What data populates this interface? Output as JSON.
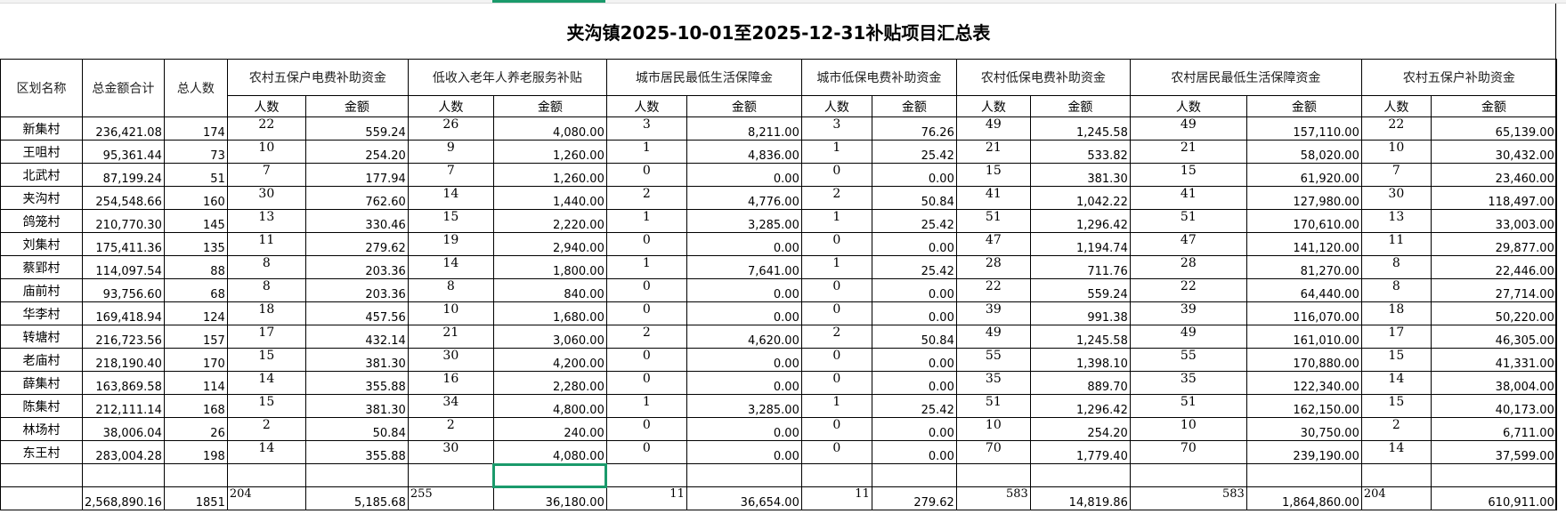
{
  "title": "夹沟镇2025-10-01至2025-12-31补贴项目汇总表",
  "headers": {
    "region": "区划名称",
    "total_amount": "总金额合计",
    "total_people": "总人数",
    "count": "人数",
    "amount": "金额",
    "groups": [
      "农村五保户电费补助资金",
      "低收入老年人养老服务补贴",
      "城市居民最低生活保障金",
      "城市低保电费补助资金",
      "农村低保电费补助资金",
      "农村居民最低生活保障资金",
      "农村五保户补助资金"
    ]
  },
  "rows": [
    [
      "新集村",
      "236,421.08",
      "174",
      "22",
      "559.24",
      "26",
      "4,080.00",
      "3",
      "8,211.00",
      "3",
      "76.26",
      "49",
      "1,245.58",
      "49",
      "157,110.00",
      "22",
      "65,139.00"
    ],
    [
      "王咀村",
      "95,361.44",
      "73",
      "10",
      "254.20",
      "9",
      "1,260.00",
      "1",
      "4,836.00",
      "1",
      "25.42",
      "21",
      "533.82",
      "21",
      "58,020.00",
      "10",
      "30,432.00"
    ],
    [
      "北武村",
      "87,199.24",
      "51",
      "7",
      "177.94",
      "7",
      "1,260.00",
      "0",
      "0.00",
      "0",
      "0.00",
      "15",
      "381.30",
      "15",
      "61,920.00",
      "7",
      "23,460.00"
    ],
    [
      "夹沟村",
      "254,548.66",
      "160",
      "30",
      "762.60",
      "14",
      "1,440.00",
      "2",
      "4,776.00",
      "2",
      "50.84",
      "41",
      "1,042.22",
      "41",
      "127,980.00",
      "30",
      "118,497.00"
    ],
    [
      "鸽笼村",
      "210,770.30",
      "145",
      "13",
      "330.46",
      "15",
      "2,220.00",
      "1",
      "3,285.00",
      "1",
      "25.42",
      "51",
      "1,296.42",
      "51",
      "170,610.00",
      "13",
      "33,003.00"
    ],
    [
      "刘集村",
      "175,411.36",
      "135",
      "11",
      "279.62",
      "19",
      "2,940.00",
      "0",
      "0.00",
      "0",
      "0.00",
      "47",
      "1,194.74",
      "47",
      "141,120.00",
      "11",
      "29,877.00"
    ],
    [
      "蔡郢村",
      "114,097.54",
      "88",
      "8",
      "203.36",
      "14",
      "1,800.00",
      "1",
      "7,641.00",
      "1",
      "25.42",
      "28",
      "711.76",
      "28",
      "81,270.00",
      "8",
      "22,446.00"
    ],
    [
      "庙前村",
      "93,756.60",
      "68",
      "8",
      "203.36",
      "8",
      "840.00",
      "0",
      "0.00",
      "0",
      "0.00",
      "22",
      "559.24",
      "22",
      "64,440.00",
      "8",
      "27,714.00"
    ],
    [
      "华李村",
      "169,418.94",
      "124",
      "18",
      "457.56",
      "10",
      "1,680.00",
      "0",
      "0.00",
      "0",
      "0.00",
      "39",
      "991.38",
      "39",
      "116,070.00",
      "18",
      "50,220.00"
    ],
    [
      "转塘村",
      "216,723.56",
      "157",
      "17",
      "432.14",
      "21",
      "3,060.00",
      "2",
      "4,620.00",
      "2",
      "50.84",
      "49",
      "1,245.58",
      "49",
      "161,010.00",
      "17",
      "46,305.00"
    ],
    [
      "老庙村",
      "218,190.40",
      "170",
      "15",
      "381.30",
      "30",
      "4,200.00",
      "0",
      "0.00",
      "0",
      "0.00",
      "55",
      "1,398.10",
      "55",
      "170,880.00",
      "15",
      "41,331.00"
    ],
    [
      "薛集村",
      "163,869.58",
      "114",
      "14",
      "355.88",
      "16",
      "2,280.00",
      "0",
      "0.00",
      "0",
      "0.00",
      "35",
      "889.70",
      "35",
      "122,340.00",
      "14",
      "38,004.00"
    ],
    [
      "陈集村",
      "212,111.14",
      "168",
      "15",
      "381.30",
      "34",
      "4,800.00",
      "1",
      "3,285.00",
      "1",
      "25.42",
      "51",
      "1,296.42",
      "51",
      "162,150.00",
      "15",
      "40,173.00"
    ],
    [
      "林场村",
      "38,006.04",
      "26",
      "2",
      "50.84",
      "2",
      "240.00",
      "0",
      "0.00",
      "0",
      "0.00",
      "10",
      "254.20",
      "10",
      "30,750.00",
      "2",
      "6,711.00"
    ],
    [
      "东王村",
      "283,004.28",
      "198",
      "14",
      "355.88",
      "30",
      "4,080.00",
      "0",
      "0.00",
      "0",
      "0.00",
      "70",
      "1,779.40",
      "70",
      "239,190.00",
      "14",
      "37,599.00"
    ]
  ],
  "totals": [
    "",
    "2,568,890.16",
    "1851",
    "204",
    "5,185.68",
    "255",
    "36,180.00",
    "11",
    "36,654.00",
    "11",
    "279.62",
    "583",
    "14,819.86",
    "583",
    "1,864,860.00",
    "204",
    "610,911.00"
  ],
  "colors": {
    "selection": "#1a9a6b"
  }
}
